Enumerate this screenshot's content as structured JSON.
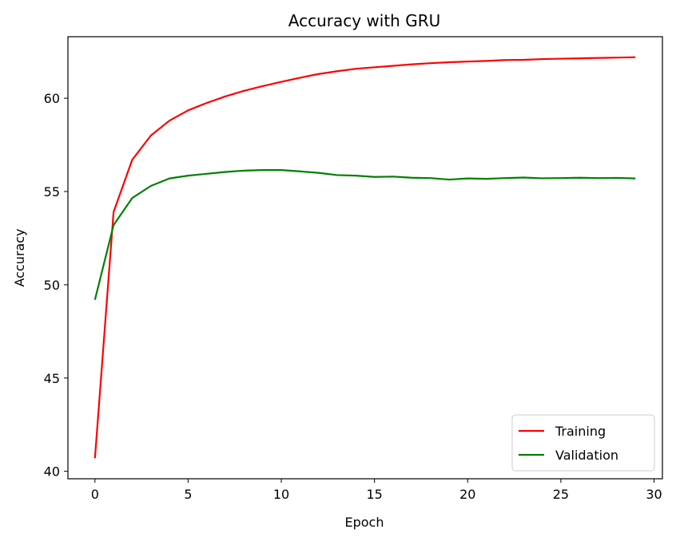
{
  "chart_data": {
    "type": "line",
    "title": "Accuracy with GRU",
    "xlabel": "Epoch",
    "ylabel": "Accuracy",
    "xlim": [
      -1.45,
      30.45
    ],
    "ylim": [
      39.6,
      63.3
    ],
    "xticks": [
      0,
      5,
      10,
      15,
      20,
      25,
      30
    ],
    "yticks": [
      40,
      45,
      50,
      55,
      60
    ],
    "x": [
      0,
      1,
      2,
      3,
      4,
      5,
      6,
      7,
      8,
      9,
      10,
      11,
      12,
      13,
      14,
      15,
      16,
      17,
      18,
      19,
      20,
      21,
      22,
      23,
      24,
      25,
      26,
      27,
      28,
      29
    ],
    "series": [
      {
        "name": "Training",
        "color": "#ff0000",
        "values": [
          40.7,
          53.9,
          56.7,
          58.0,
          58.8,
          59.35,
          59.75,
          60.1,
          60.4,
          60.65,
          60.88,
          61.1,
          61.3,
          61.45,
          61.58,
          61.66,
          61.74,
          61.82,
          61.88,
          61.93,
          61.97,
          62.0,
          62.05,
          62.06,
          62.1,
          62.12,
          62.14,
          62.16,
          62.18,
          62.2
        ]
      },
      {
        "name": "Validation",
        "color": "#008000",
        "values": [
          49.2,
          53.2,
          54.65,
          55.3,
          55.7,
          55.85,
          55.95,
          56.05,
          56.12,
          56.15,
          56.15,
          56.08,
          56.0,
          55.88,
          55.85,
          55.78,
          55.8,
          55.74,
          55.72,
          55.64,
          55.7,
          55.68,
          55.72,
          55.75,
          55.71,
          55.72,
          55.74,
          55.72,
          55.73,
          55.7
        ]
      }
    ],
    "legend_position": "lower-right",
    "grid": false
  }
}
